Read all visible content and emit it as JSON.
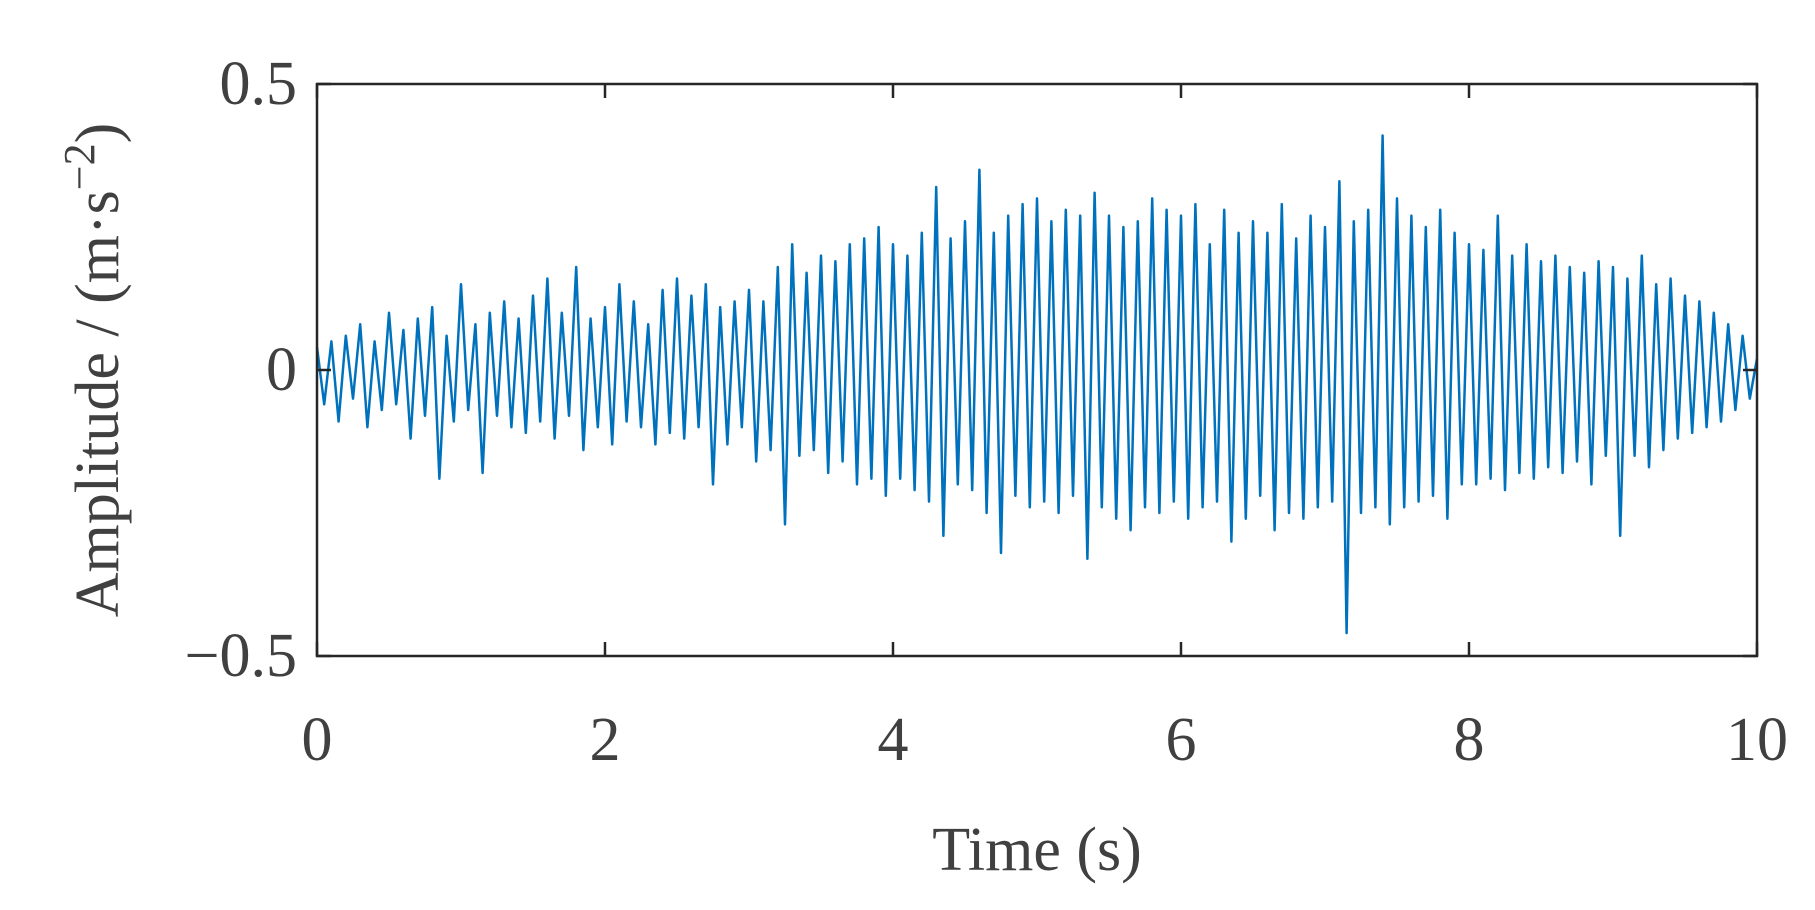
{
  "chart_data": {
    "type": "line",
    "xlabel": "Time (s)",
    "ylabel": {
      "text": "Amplitude / (m·s",
      "superscript": "−2",
      "end": ")"
    },
    "xlim": [
      0,
      10
    ],
    "xticks": [
      0,
      2,
      4,
      6,
      8,
      10
    ],
    "ylim": [
      -0.5,
      0.5
    ],
    "yticks": [
      {
        "value": -0.5,
        "label": "−0.5"
      },
      0,
      0.5
    ],
    "series": [
      {
        "color": "#0072bd",
        "x": [
          0,
          0.05,
          0.1,
          0.15,
          0.2,
          0.25,
          0.3,
          0.35,
          0.4,
          0.45,
          0.5,
          0.55,
          0.6,
          0.65,
          0.7,
          0.75,
          0.8,
          0.85,
          0.9,
          0.95,
          1,
          1.05,
          1.1,
          1.15,
          1.2,
          1.25,
          1.3,
          1.35,
          1.4,
          1.45,
          1.5,
          1.55,
          1.6,
          1.65,
          1.7,
          1.75,
          1.8,
          1.85,
          1.9,
          1.95,
          2,
          2.05,
          2.1,
          2.15,
          2.2,
          2.25,
          2.3,
          2.35,
          2.4,
          2.45,
          2.5,
          2.55,
          2.6,
          2.65,
          2.7,
          2.75,
          2.8,
          2.85,
          2.9,
          2.95,
          3,
          3.05,
          3.1,
          3.15,
          3.2,
          3.25,
          3.3,
          3.35,
          3.4,
          3.45,
          3.5,
          3.55,
          3.6,
          3.65,
          3.7,
          3.75,
          3.8,
          3.85,
          3.9,
          3.95,
          4,
          4.05,
          4.1,
          4.15,
          4.2,
          4.25,
          4.3,
          4.35,
          4.4,
          4.45,
          4.5,
          4.55,
          4.6,
          4.65,
          4.7,
          4.75,
          4.8,
          4.85,
          4.9,
          4.95,
          5,
          5.05,
          5.1,
          5.15,
          5.2,
          5.25,
          5.3,
          5.35,
          5.4,
          5.45,
          5.5,
          5.55,
          5.6,
          5.65,
          5.7,
          5.75,
          5.8,
          5.85,
          5.9,
          5.95,
          6,
          6.05,
          6.1,
          6.15,
          6.2,
          6.25,
          6.3,
          6.35,
          6.4,
          6.45,
          6.5,
          6.55,
          6.6,
          6.65,
          6.7,
          6.75,
          6.8,
          6.85,
          6.9,
          6.95,
          7,
          7.05,
          7.1,
          7.15,
          7.2,
          7.25,
          7.3,
          7.35,
          7.4,
          7.45,
          7.5,
          7.55,
          7.6,
          7.65,
          7.7,
          7.75,
          7.8,
          7.85,
          7.9,
          7.95,
          8,
          8.05,
          8.1,
          8.15,
          8.2,
          8.25,
          8.3,
          8.35,
          8.4,
          8.45,
          8.5,
          8.55,
          8.6,
          8.65,
          8.7,
          8.75,
          8.8,
          8.85,
          8.9,
          8.95,
          9,
          9.05,
          9.1,
          9.15,
          9.2,
          9.25,
          9.3,
          9.35,
          9.4,
          9.45,
          9.5,
          9.55,
          9.6,
          9.65,
          9.7,
          9.75,
          9.8,
          9.85,
          9.9,
          9.95,
          10
        ],
        "values": [
          0.04,
          -0.06,
          0.05,
          -0.09,
          0.06,
          -0.05,
          0.08,
          -0.1,
          0.05,
          -0.07,
          0.1,
          -0.06,
          0.07,
          -0.12,
          0.09,
          -0.08,
          0.11,
          -0.19,
          0.06,
          -0.09,
          0.15,
          -0.07,
          0.08,
          -0.18,
          0.1,
          -0.08,
          0.12,
          -0.1,
          0.09,
          -0.11,
          0.13,
          -0.09,
          0.16,
          -0.12,
          0.1,
          -0.08,
          0.18,
          -0.14,
          0.09,
          -0.1,
          0.11,
          -0.13,
          0.15,
          -0.09,
          0.12,
          -0.1,
          0.08,
          -0.13,
          0.14,
          -0.11,
          0.16,
          -0.12,
          0.13,
          -0.1,
          0.15,
          -0.2,
          0.11,
          -0.13,
          0.12,
          -0.1,
          0.14,
          -0.16,
          0.12,
          -0.14,
          0.18,
          -0.27,
          0.22,
          -0.15,
          0.17,
          -0.14,
          0.2,
          -0.18,
          0.19,
          -0.16,
          0.22,
          -0.2,
          0.23,
          -0.19,
          0.25,
          -0.22,
          0.22,
          -0.19,
          0.2,
          -0.21,
          0.24,
          -0.23,
          0.32,
          -0.29,
          0.23,
          -0.2,
          0.26,
          -0.21,
          0.35,
          -0.25,
          0.24,
          -0.32,
          0.27,
          -0.22,
          0.29,
          -0.24,
          0.3,
          -0.23,
          0.26,
          -0.25,
          0.28,
          -0.22,
          0.27,
          -0.33,
          0.31,
          -0.24,
          0.27,
          -0.26,
          0.25,
          -0.28,
          0.26,
          -0.24,
          0.3,
          -0.25,
          0.28,
          -0.23,
          0.27,
          -0.26,
          0.29,
          -0.24,
          0.22,
          -0.23,
          0.28,
          -0.3,
          0.24,
          -0.26,
          0.26,
          -0.22,
          0.24,
          -0.28,
          0.29,
          -0.25,
          0.23,
          -0.26,
          0.27,
          -0.24,
          0.25,
          -0.23,
          0.33,
          -0.46,
          0.26,
          -0.25,
          0.28,
          -0.24,
          0.41,
          -0.27,
          0.3,
          -0.24,
          0.27,
          -0.23,
          0.25,
          -0.22,
          0.28,
          -0.26,
          0.24,
          -0.2,
          0.22,
          -0.2,
          0.21,
          -0.19,
          0.27,
          -0.21,
          0.2,
          -0.18,
          0.22,
          -0.19,
          0.19,
          -0.17,
          0.2,
          -0.18,
          0.18,
          -0.16,
          0.17,
          -0.2,
          0.19,
          -0.15,
          0.18,
          -0.29,
          0.16,
          -0.15,
          0.2,
          -0.17,
          0.15,
          -0.14,
          0.16,
          -0.12,
          0.13,
          -0.11,
          0.12,
          -0.1,
          0.1,
          -0.09,
          0.08,
          -0.07,
          0.06,
          -0.05,
          0.02
        ]
      }
    ]
  }
}
